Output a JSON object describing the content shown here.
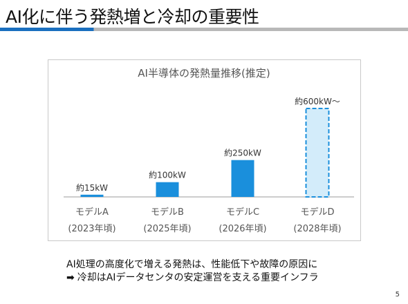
{
  "slide": {
    "title": "AI化に伴う発熱増と冷却の重要性",
    "page_number": "5",
    "summary_line1": "AI処理の高度化で増える発熱は、性能低下や故障の原因に",
    "summary_arrow": "➡",
    "summary_line2": "冷却はAIデータセンタの安定運営を支える重要インフラ"
  },
  "colors": {
    "title_accent": "#1a6fbf",
    "bar_fill": "#1a8fdc",
    "bar_estimated_fill": "#d3ecfa",
    "bar_estimated_stroke": "#1a8fdc"
  },
  "chart_data": {
    "type": "bar",
    "title": "AI半導体の発熱量推移(推定)",
    "categories": [
      "モデルA",
      "モデルB",
      "モデルC",
      "モデルD"
    ],
    "category_years": [
      "(2023年頃)",
      "(2025年頃)",
      "(2026年頃)",
      "(2028年頃)"
    ],
    "values": [
      15,
      100,
      250,
      600
    ],
    "unit": "kW",
    "data_labels": [
      "約15kW",
      "約100kW",
      "約250kW",
      "約600kW～"
    ],
    "estimated": [
      false,
      false,
      false,
      true
    ],
    "ylim": [
      0,
      600
    ],
    "grid": false,
    "legend": "none"
  }
}
